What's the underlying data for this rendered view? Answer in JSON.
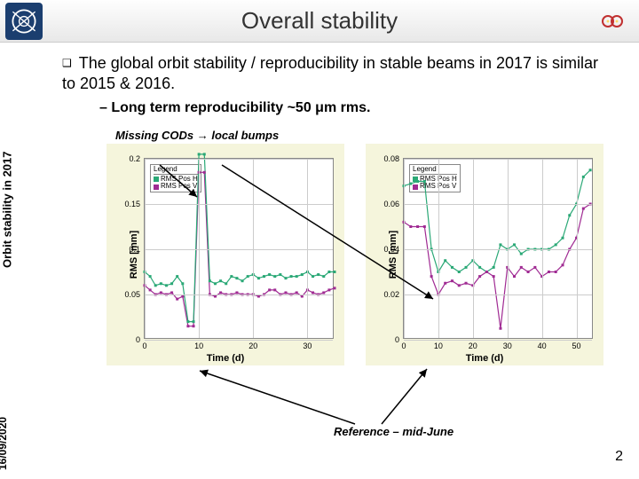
{
  "header": {
    "title": "Overall stability"
  },
  "bullets": {
    "main": "The global orbit stability / reproducibility in stable beams in 2017 is similar to 2015 & 2016.",
    "sub": "–  Long term reproducibility ~50 μm rms."
  },
  "annotations": {
    "missing_cods": "Missing CODs → local bumps",
    "reference": "Reference – mid-June"
  },
  "side": {
    "rotated_label": "Orbit stability in 2017",
    "date": "16/09/2020"
  },
  "page_number": "2",
  "legend": {
    "header": "Legend",
    "h": "RMS Pos H",
    "v": "RMS Pos V"
  },
  "axes": {
    "x_label": "Time (d)",
    "y_label": "RMS [mm]"
  },
  "chart1": {
    "type": "line-scatter",
    "xlim": [
      0,
      35
    ],
    "ylim": [
      0,
      0.2
    ],
    "xticks": [
      0,
      10,
      20,
      30
    ],
    "yticks": [
      0,
      0.05,
      0.1,
      0.15,
      0.2
    ],
    "background_color": "#f5f5dc",
    "grid_color": "#cccccc",
    "series": {
      "h": {
        "color": "#2aa876",
        "x": [
          0,
          1,
          2,
          3,
          4,
          5,
          6,
          7,
          8,
          9,
          10,
          11,
          12,
          13,
          14,
          15,
          16,
          17,
          18,
          19,
          20,
          21,
          22,
          23,
          24,
          25,
          26,
          27,
          28,
          29,
          30,
          31,
          32,
          33,
          34,
          35
        ],
        "y": [
          0.075,
          0.07,
          0.06,
          0.062,
          0.06,
          0.062,
          0.07,
          0.062,
          0.02,
          0.02,
          0.205,
          0.205,
          0.065,
          0.062,
          0.065,
          0.062,
          0.07,
          0.068,
          0.065,
          0.07,
          0.072,
          0.068,
          0.07,
          0.072,
          0.07,
          0.072,
          0.068,
          0.07,
          0.07,
          0.072,
          0.075,
          0.07,
          0.072,
          0.07,
          0.075,
          0.075
        ]
      },
      "v": {
        "color": "#a02b93",
        "x": [
          0,
          1,
          2,
          3,
          4,
          5,
          6,
          7,
          8,
          9,
          10,
          11,
          12,
          13,
          14,
          15,
          16,
          17,
          18,
          19,
          20,
          21,
          22,
          23,
          24,
          25,
          26,
          27,
          28,
          29,
          30,
          31,
          32,
          33,
          34,
          35
        ],
        "y": [
          0.06,
          0.055,
          0.05,
          0.052,
          0.05,
          0.052,
          0.045,
          0.048,
          0.015,
          0.015,
          0.185,
          0.185,
          0.05,
          0.048,
          0.052,
          0.05,
          0.05,
          0.052,
          0.05,
          0.05,
          0.05,
          0.048,
          0.05,
          0.055,
          0.055,
          0.05,
          0.052,
          0.05,
          0.052,
          0.048,
          0.055,
          0.052,
          0.05,
          0.052,
          0.055,
          0.057
        ]
      }
    }
  },
  "chart2": {
    "type": "line-scatter",
    "xlim": [
      0,
      55
    ],
    "ylim": [
      0,
      0.08
    ],
    "xticks": [
      0,
      10,
      20,
      30,
      40,
      50
    ],
    "yticks": [
      0,
      0.02,
      0.04,
      0.06,
      0.08
    ],
    "background_color": "#f5f5dc",
    "grid_color": "#cccccc",
    "series": {
      "h": {
        "color": "#2aa876",
        "x": [
          0,
          2,
          4,
          6,
          8,
          10,
          12,
          14,
          16,
          18,
          20,
          22,
          24,
          26,
          28,
          30,
          32,
          34,
          36,
          38,
          40,
          42,
          44,
          46,
          48,
          50,
          52,
          54
        ],
        "y": [
          0.068,
          0.069,
          0.07,
          0.07,
          0.04,
          0.03,
          0.035,
          0.032,
          0.03,
          0.032,
          0.035,
          0.032,
          0.03,
          0.032,
          0.042,
          0.04,
          0.042,
          0.038,
          0.04,
          0.04,
          0.04,
          0.04,
          0.042,
          0.045,
          0.055,
          0.06,
          0.072,
          0.075
        ]
      },
      "v": {
        "color": "#a02b93",
        "x": [
          0,
          2,
          4,
          6,
          8,
          10,
          12,
          14,
          16,
          18,
          20,
          22,
          24,
          26,
          28,
          30,
          32,
          34,
          36,
          38,
          40,
          42,
          44,
          46,
          48,
          50,
          52,
          54
        ],
        "y": [
          0.052,
          0.05,
          0.05,
          0.05,
          0.028,
          0.02,
          0.025,
          0.026,
          0.024,
          0.025,
          0.024,
          0.028,
          0.03,
          0.028,
          0.005,
          0.032,
          0.028,
          0.032,
          0.03,
          0.032,
          0.028,
          0.03,
          0.03,
          0.033,
          0.04,
          0.045,
          0.058,
          0.06
        ]
      }
    }
  }
}
